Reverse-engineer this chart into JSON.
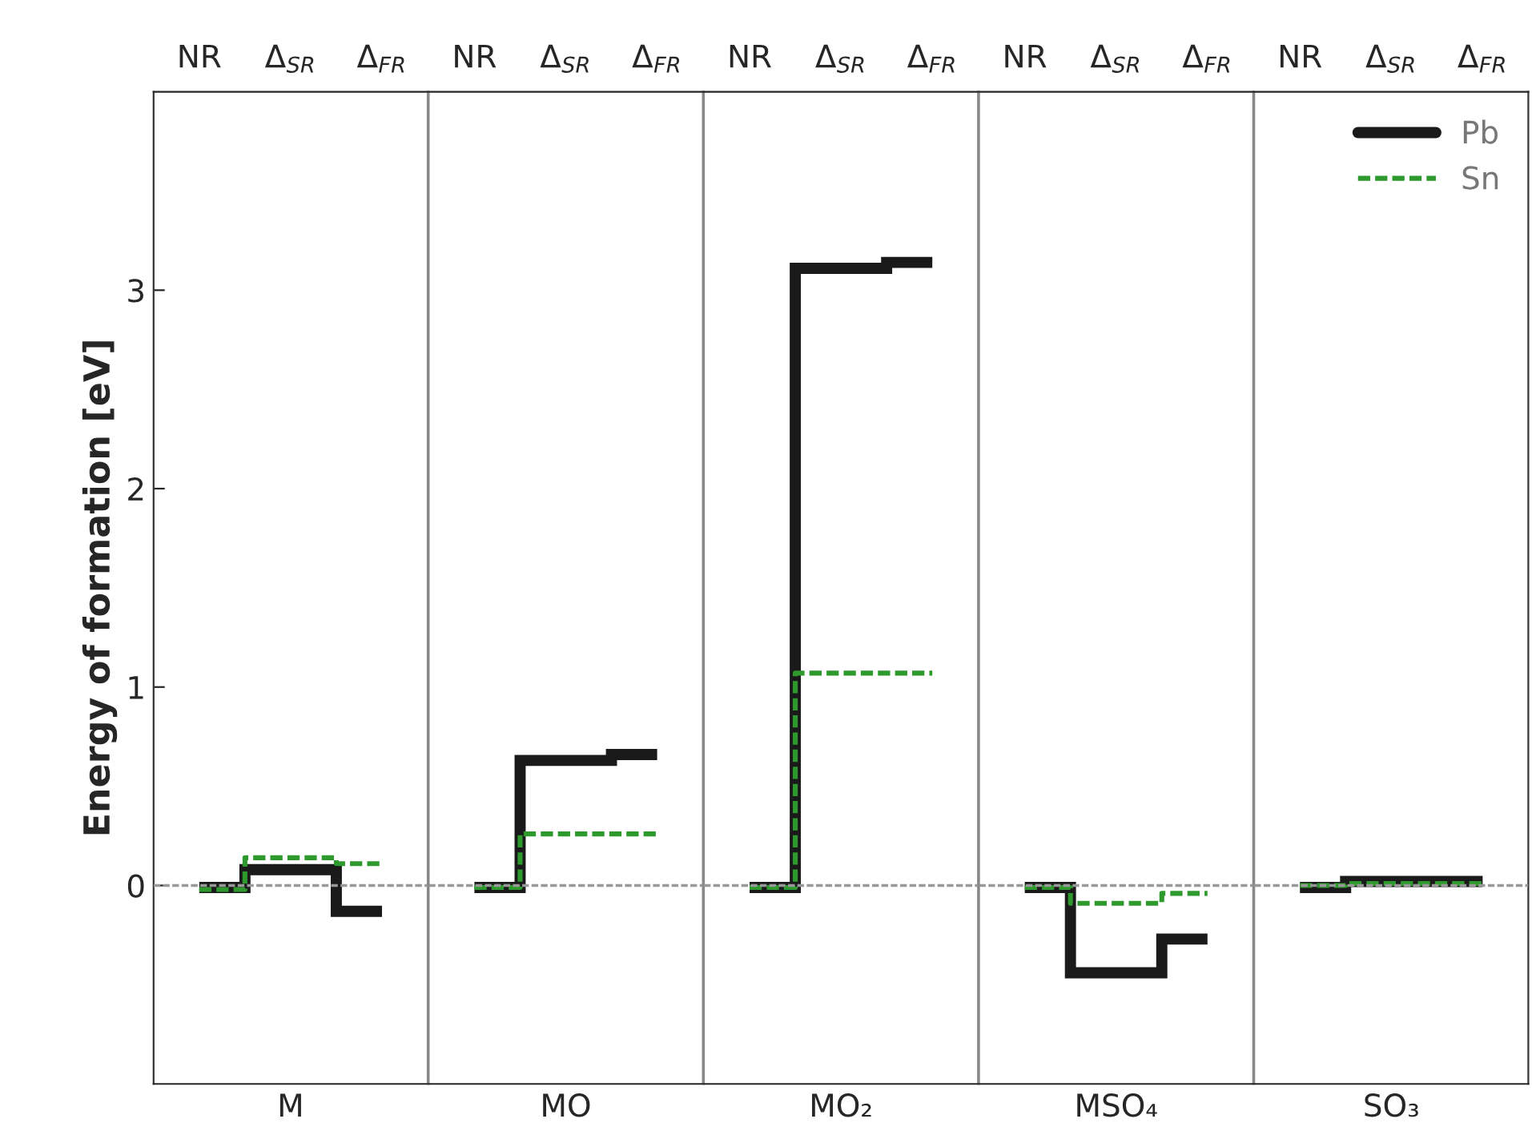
{
  "chart_data": [
    {
      "type": "step",
      "xlabel": "M",
      "ylabel": "Energy of formation [eV]",
      "categories": [
        "NR",
        "Δ$_{SR}$",
        "Δ$_{FR}$"
      ],
      "ylim": [
        -1,
        4
      ],
      "yticks": [
        0,
        1,
        2,
        3
      ],
      "tick_labels": true,
      "ref_lines": [
        {
          "axis": "y",
          "value": 0,
          "color": "#999999",
          "line_style": "dashed"
        }
      ],
      "series": [
        {
          "color": "#1a1a1a",
          "line_style": "solid",
          "values": [
            -0.01,
            0.08,
            -0.13
          ]
        },
        {
          "color": "#2e9a2e",
          "line_style": "dashed",
          "values": [
            -0.02,
            0.14,
            0.11
          ]
        }
      ]
    },
    {
      "type": "step",
      "xlabel": "MO",
      "categories": [
        "NR",
        "Δ$_{SR}$",
        "Δ$_{FR}$"
      ],
      "ylim": [
        -1,
        4
      ],
      "tick_labels": "x",
      "ref_lines": [
        {
          "axis": "y",
          "value": 0,
          "color": "#999999",
          "line_style": "dashed"
        }
      ],
      "series": [
        {
          "color": "#1a1a1a",
          "line_style": "solid",
          "values": [
            -0.01,
            0.63,
            0.66
          ]
        },
        {
          "color": "#2e9a2e",
          "line_style": "dashed",
          "values": [
            -0.01,
            0.26,
            0.26
          ]
        }
      ]
    },
    {
      "type": "step",
      "xlabel": "MO₂",
      "categories": [
        "NR",
        "Δ$_{SR}$",
        "Δ$_{FR}$"
      ],
      "ylim": [
        -1,
        4
      ],
      "tick_labels": "x",
      "ref_lines": [
        {
          "axis": "y",
          "value": 0,
          "color": "#999999",
          "line_style": "dashed"
        }
      ],
      "series": [
        {
          "color": "#1a1a1a",
          "line_style": "solid",
          "values": [
            -0.01,
            3.11,
            3.14
          ]
        },
        {
          "color": "#2e9a2e",
          "line_style": "dashed",
          "values": [
            -0.01,
            1.07,
            1.07
          ]
        }
      ]
    },
    {
      "type": "step",
      "xlabel": "MSO₄",
      "categories": [
        "NR",
        "Δ$_{SR}$",
        "Δ$_{FR}$"
      ],
      "ylim": [
        -1,
        4
      ],
      "tick_labels": "x",
      "ref_lines": [
        {
          "axis": "y",
          "value": 0,
          "color": "#999999",
          "line_style": "dashed"
        }
      ],
      "series": [
        {
          "color": "#1a1a1a",
          "line_style": "solid",
          "values": [
            -0.01,
            -0.44,
            -0.27
          ]
        },
        {
          "color": "#2e9a2e",
          "line_style": "dashed",
          "values": [
            -0.01,
            -0.09,
            -0.04
          ]
        }
      ]
    },
    {
      "type": "step",
      "xlabel": "SO₃",
      "categories": [
        "NR",
        "Δ$_{SR}$",
        "Δ$_{FR}$"
      ],
      "ylim": [
        -1,
        4
      ],
      "tick_labels": "x",
      "legend": "top right",
      "ref_lines": [
        {
          "axis": "y",
          "value": 0,
          "color": "#999999",
          "line_style": "dashed"
        }
      ],
      "series": [
        {
          "name": "Pb",
          "color": "#1a1a1a",
          "line_style": "solid",
          "values": [
            -0.01,
            0.02,
            0.02
          ]
        },
        {
          "name": "Sn",
          "color": "#2e9a2e",
          "line_style": "dashed",
          "values": [
            0.0,
            0.01,
            0.01
          ]
        }
      ]
    }
  ]
}
